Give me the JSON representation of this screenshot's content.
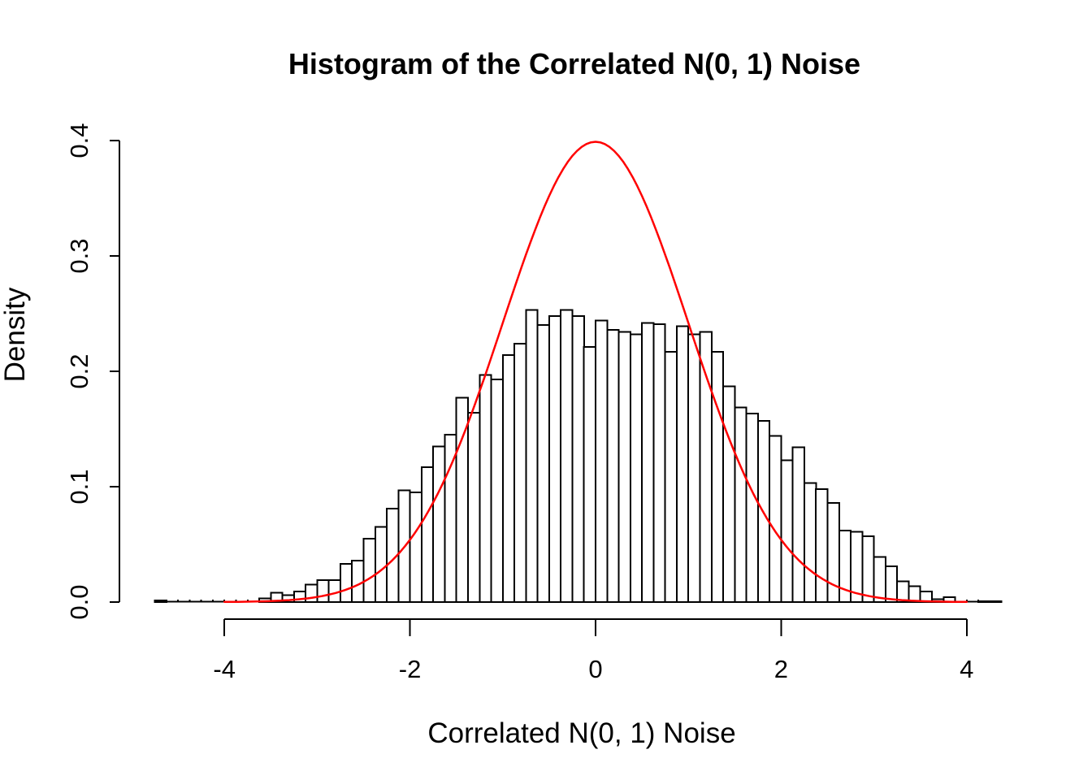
{
  "title": "Histogram of the Correlated N(0, 1) Noise",
  "axes": {
    "x": {
      "label": "Correlated N(0, 1) Noise",
      "tick_labels": [
        "-4",
        "-2",
        "0",
        "2",
        "4"
      ],
      "tick_values": [
        -4,
        -2,
        0,
        2,
        4
      ]
    },
    "y": {
      "label": "Density",
      "tick_labels": [
        "0.0",
        "0.1",
        "0.2",
        "0.3",
        "0.4"
      ],
      "tick_values": [
        0,
        0.1,
        0.2,
        0.3,
        0.4
      ]
    }
  },
  "colors": {
    "curve": "#ff0000",
    "bar_fill": "#ffffff",
    "bar_border": "#000000",
    "axis": "#000000",
    "background": "#ffffff"
  },
  "chart_data": {
    "type": "bar",
    "subtype": "histogram-with-normal-density-overlay",
    "title": "Histogram of the Correlated N(0, 1) Noise",
    "xlabel": "Correlated N(0, 1) Noise",
    "ylabel": "Density",
    "xlim": [
      -4.9,
      4.6
    ],
    "ylim": [
      0,
      0.4
    ],
    "grid": false,
    "legend": "none",
    "bins": {
      "start": -4.75,
      "width": 0.125,
      "densities": [
        0.0014,
        0,
        0,
        0,
        0,
        0,
        0,
        0,
        0,
        0.003,
        0.008,
        0.006,
        0.009,
        0.015,
        0.019,
        0.019,
        0.033,
        0.036,
        0.055,
        0.065,
        0.081,
        0.097,
        0.095,
        0.117,
        0.135,
        0.145,
        0.177,
        0.164,
        0.197,
        0.193,
        0.214,
        0.224,
        0.253,
        0.24,
        0.248,
        0.253,
        0.248,
        0.221,
        0.244,
        0.236,
        0.234,
        0.232,
        0.242,
        0.241,
        0.217,
        0.239,
        0.232,
        0.234,
        0.217,
        0.187,
        0.1685,
        0.1635,
        0.157,
        0.144,
        0.123,
        0.134,
        0.103,
        0.098,
        0.086,
        0.062,
        0.061,
        0.057,
        0.039,
        0.031,
        0.018,
        0.0136,
        0.009,
        0.0025,
        0.0044,
        0,
        0,
        0.0008,
        0.0008
      ]
    },
    "overlay_curve": {
      "type": "normal-pdf",
      "mean": 0,
      "sd": 1,
      "x_range": [
        -4,
        4
      ],
      "peak_density": 0.3989,
      "color": "#ff0000"
    }
  }
}
